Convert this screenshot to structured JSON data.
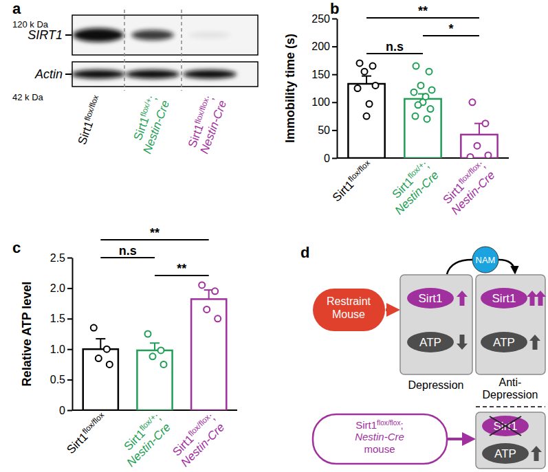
{
  "blot": {
    "panel_label": "a",
    "targets": [
      {
        "name": "SIRT1",
        "size": "120 k Da"
      },
      {
        "name": "Actin",
        "size": "42 k Da"
      }
    ],
    "lanes": [
      "Sirt1 flox/flox",
      "Sirt1 flox/+; Nestin-Cre",
      "Sirt1 flox/flox; Nestin-Cre"
    ],
    "colors": [
      "#000000",
      "#1f9e55",
      "#a0309e"
    ]
  },
  "chart_data": [
    {
      "type": "bar",
      "panel_label": "b",
      "y_label": "Immobility time (s)",
      "categories": [
        "Sirt1 flox/flox",
        "Sirt1 flox/+; Nestin-Cre",
        "Sirt1 flox/flox; Nestin-Cre"
      ],
      "values": [
        133,
        106,
        42
      ],
      "errors": [
        14,
        9,
        20
      ],
      "points": [
        [
          170,
          165,
          155,
          130,
          125,
          97,
          75
        ],
        [
          165,
          155,
          130,
          122,
          118,
          110,
          100,
          95,
          88,
          75,
          70
        ],
        [
          100,
          62,
          22,
          5,
          2
        ]
      ],
      "colors": [
        "#000000",
        "#1f9e55",
        "#a0309e"
      ],
      "ylim": [
        0,
        250
      ],
      "yticks": [
        0,
        50,
        100,
        150,
        200,
        250
      ],
      "significance": [
        {
          "pair": [
            0,
            2
          ],
          "text": "**"
        },
        {
          "pair": [
            0,
            1
          ],
          "text": "n.s"
        },
        {
          "pair": [
            1,
            2
          ],
          "text": "*"
        }
      ]
    },
    {
      "type": "bar",
      "panel_label": "c",
      "y_label": "Relative ATP level",
      "categories": [
        "Sirt1 flox/flox",
        "Sirt1 flox/+; Nestin-Cre",
        "Sirt1 flox/flox; Nestin-Cre"
      ],
      "values": [
        1.0,
        0.98,
        1.82
      ],
      "errors": [
        0.17,
        0.12,
        0.15
      ],
      "points": [
        [
          1.35,
          1.0,
          0.85,
          0.75
        ],
        [
          1.25,
          0.98,
          0.88,
          0.75
        ],
        [
          2.05,
          1.95,
          1.65,
          1.5
        ]
      ],
      "colors": [
        "#000000",
        "#1f9e55",
        "#a0309e"
      ],
      "ylim": [
        0,
        2.5
      ],
      "yticks": [
        0,
        0.5,
        {
          "value": 1,
          "label": "1.0"
        },
        1.5,
        {
          "value": 2,
          "label": "2.0"
        },
        2.5
      ],
      "significance": [
        {
          "pair": [
            0,
            2
          ],
          "text": "**"
        },
        {
          "pair": [
            1,
            2
          ],
          "text": "**"
        },
        {
          "pair": [
            0,
            1
          ],
          "text": "n.s"
        }
      ]
    }
  ],
  "diagram": {
    "panel_label": "d",
    "stress": "Restraint Mouse",
    "drug": "NAM",
    "protein": "Sirt1",
    "metabolite": "ATP",
    "states": [
      "Depression",
      "Anti-Depression"
    ],
    "knockout": {
      "genotype": "Sirt1 flox/flox; Nestin-Cre",
      "suffix": "mouse"
    },
    "colors": {
      "stress": "#e0412c",
      "drug": "#1aa3de",
      "protein": "#a0309e",
      "metabolite": "#4d4d4d"
    }
  }
}
